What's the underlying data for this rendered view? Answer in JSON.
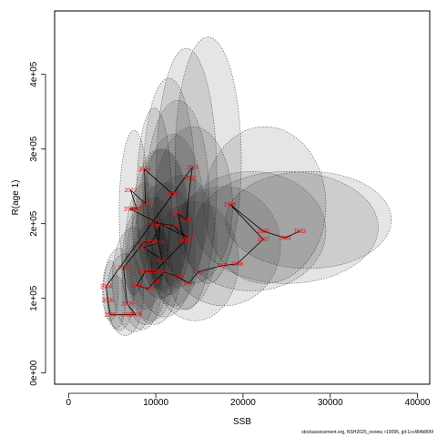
{
  "chart_data": {
    "type": "scatter",
    "title": "",
    "xlabel": "SSB",
    "ylabel": "R(age 1)",
    "xlim": [
      -1600,
      41400
    ],
    "ylim": [
      -15000,
      485000
    ],
    "xticks": [
      0,
      10000,
      20000,
      30000,
      40000
    ],
    "yticks": [
      0,
      100000,
      200000,
      300000,
      400000
    ],
    "yticklabels": [
      "0e+00",
      "1e+05",
      "2e+05",
      "3e+05",
      "4e+05"
    ],
    "grid": false,
    "legend": "none",
    "colors": {
      "ellipse_fill": "#000000",
      "ellipse_stroke": "#5a5a5a",
      "line": "#000000",
      "year_label": "#ff0000"
    },
    "points": [
      {
        "year": "1983",
        "ssb": 26500,
        "rec": 190000
      },
      {
        "year": "1984",
        "ssb": 24800,
        "rec": 181000
      },
      {
        "year": "1985",
        "ssb": 22300,
        "rec": 190000
      },
      {
        "year": "1986",
        "ssb": 18500,
        "rec": 226000
      },
      {
        "year": "1987",
        "ssb": 22300,
        "rec": 179000
      },
      {
        "year": "1988",
        "ssb": 19300,
        "rec": 146000
      },
      {
        "year": "1989",
        "ssb": 17600,
        "rec": 144000
      },
      {
        "year": "1990",
        "ssb": 14800,
        "rec": 135000
      },
      {
        "year": "1991",
        "ssb": 13800,
        "rec": 120000
      },
      {
        "year": "1992",
        "ssb": 12500,
        "rec": 129000
      },
      {
        "year": "1993",
        "ssb": 11000,
        "rec": 135000
      },
      {
        "year": "1994",
        "ssb": 9800,
        "rec": 122000
      },
      {
        "year": "1995",
        "ssb": 9100,
        "rec": 113000
      },
      {
        "year": "1996",
        "ssb": 7800,
        "rec": 117000
      },
      {
        "year": "1997",
        "ssb": 8800,
        "rec": 136000
      },
      {
        "year": "1998",
        "ssb": 9900,
        "rec": 136000
      },
      {
        "year": "1999",
        "ssb": 13300,
        "rec": 177000
      },
      {
        "year": "2000",
        "ssb": 12500,
        "rec": 214000
      },
      {
        "year": "2001",
        "ssb": 13500,
        "rec": 205000
      },
      {
        "year": "2002",
        "ssb": 14000,
        "rec": 261000
      },
      {
        "year": "2003",
        "ssb": 14200,
        "rec": 276000
      },
      {
        "year": "2004",
        "ssb": 4300,
        "rec": 116000
      },
      {
        "year": "2005",
        "ssb": 4500,
        "rec": 97000
      },
      {
        "year": "2006",
        "ssb": 4800,
        "rec": 78000
      },
      {
        "year": "2007",
        "ssb": 6800,
        "rec": 78000
      },
      {
        "year": "2008",
        "ssb": 7700,
        "rec": 78000
      },
      {
        "year": "2009",
        "ssb": 6700,
        "rec": 93000
      },
      {
        "year": "2010",
        "ssb": 6300,
        "rec": 141000
      },
      {
        "year": "2011",
        "ssb": 8600,
        "rec": 175000
      },
      {
        "year": "2012",
        "ssb": 9500,
        "rec": 175000
      },
      {
        "year": "2013",
        "ssb": 10500,
        "rec": 197000
      },
      {
        "year": "2014",
        "ssb": 10300,
        "rec": 175000
      },
      {
        "year": "2015",
        "ssb": 8600,
        "rec": 168000
      },
      {
        "year": "2016",
        "ssb": 10700,
        "rec": 152000
      },
      {
        "year": "2017",
        "ssb": 9800,
        "rec": 201000
      },
      {
        "year": "2018",
        "ssb": 11900,
        "rec": 198000
      },
      {
        "year": "2019",
        "ssb": 13700,
        "rec": 181000
      },
      {
        "year": "2020",
        "ssb": 7000,
        "rec": 220000
      },
      {
        "year": "2021",
        "ssb": 7800,
        "rec": 220000
      },
      {
        "year": "2022",
        "ssb": 7100,
        "rec": 245000
      },
      {
        "year": "2023",
        "ssb": 8800,
        "rec": 227000
      },
      {
        "year": "2024",
        "ssb": 8700,
        "rec": 273000
      },
      {
        "year": "2025",
        "ssb": 12000,
        "rec": 239000
      }
    ],
    "ellipses": [
      {
        "cx": 9800,
        "cy": 235000,
        "rx": 2000,
        "ry": 120000
      },
      {
        "cx": 7500,
        "cy": 215000,
        "rx": 1700,
        "ry": 110000
      },
      {
        "cx": 13500,
        "cy": 260000,
        "rx": 3500,
        "ry": 175000
      },
      {
        "cx": 16000,
        "cy": 285000,
        "rx": 3800,
        "ry": 165000
      },
      {
        "cx": 11500,
        "cy": 250000,
        "rx": 3000,
        "ry": 145000
      },
      {
        "cx": 12500,
        "cy": 240000,
        "rx": 3600,
        "ry": 125000
      },
      {
        "cx": 14300,
        "cy": 225000,
        "rx": 4500,
        "ry": 105000
      },
      {
        "cx": 10500,
        "cy": 200000,
        "rx": 3200,
        "ry": 100000
      },
      {
        "cx": 22500,
        "cy": 225000,
        "rx": 7000,
        "ry": 105000
      },
      {
        "cx": 27500,
        "cy": 205000,
        "rx": 9500,
        "ry": 65000
      },
      {
        "cx": 25000,
        "cy": 195000,
        "rx": 10500,
        "ry": 75000
      },
      {
        "cx": 21000,
        "cy": 190000,
        "rx": 8500,
        "ry": 80000
      },
      {
        "cx": 17800,
        "cy": 170000,
        "rx": 6500,
        "ry": 80000
      },
      {
        "cx": 14500,
        "cy": 150000,
        "rx": 5000,
        "ry": 80000
      },
      {
        "cx": 13000,
        "cy": 175000,
        "rx": 4000,
        "ry": 90000
      },
      {
        "cx": 8800,
        "cy": 145000,
        "rx": 2700,
        "ry": 80000
      },
      {
        "cx": 9800,
        "cy": 150000,
        "rx": 3200,
        "ry": 85000
      },
      {
        "cx": 11000,
        "cy": 165000,
        "rx": 3600,
        "ry": 90000
      },
      {
        "cx": 7500,
        "cy": 125000,
        "rx": 2500,
        "ry": 70000
      },
      {
        "cx": 6500,
        "cy": 105000,
        "rx": 2100,
        "ry": 55000
      },
      {
        "cx": 5800,
        "cy": 112000,
        "rx": 1800,
        "ry": 55000
      },
      {
        "cx": 4800,
        "cy": 110000,
        "rx": 900,
        "ry": 40000
      },
      {
        "cx": 5500,
        "cy": 95000,
        "rx": 1000,
        "ry": 35000
      },
      {
        "cx": 8400,
        "cy": 118000,
        "rx": 2300,
        "ry": 60000
      },
      {
        "cx": 9500,
        "cy": 135000,
        "rx": 2500,
        "ry": 65000
      },
      {
        "cx": 8800,
        "cy": 170000,
        "rx": 2300,
        "ry": 85000
      },
      {
        "cx": 10800,
        "cy": 205000,
        "rx": 3000,
        "ry": 95000
      },
      {
        "cx": 12000,
        "cy": 205000,
        "rx": 3600,
        "ry": 115000
      }
    ]
  },
  "footer": "stockassessment.org, NSH2025_review, r19095, git:1cc484b806f"
}
